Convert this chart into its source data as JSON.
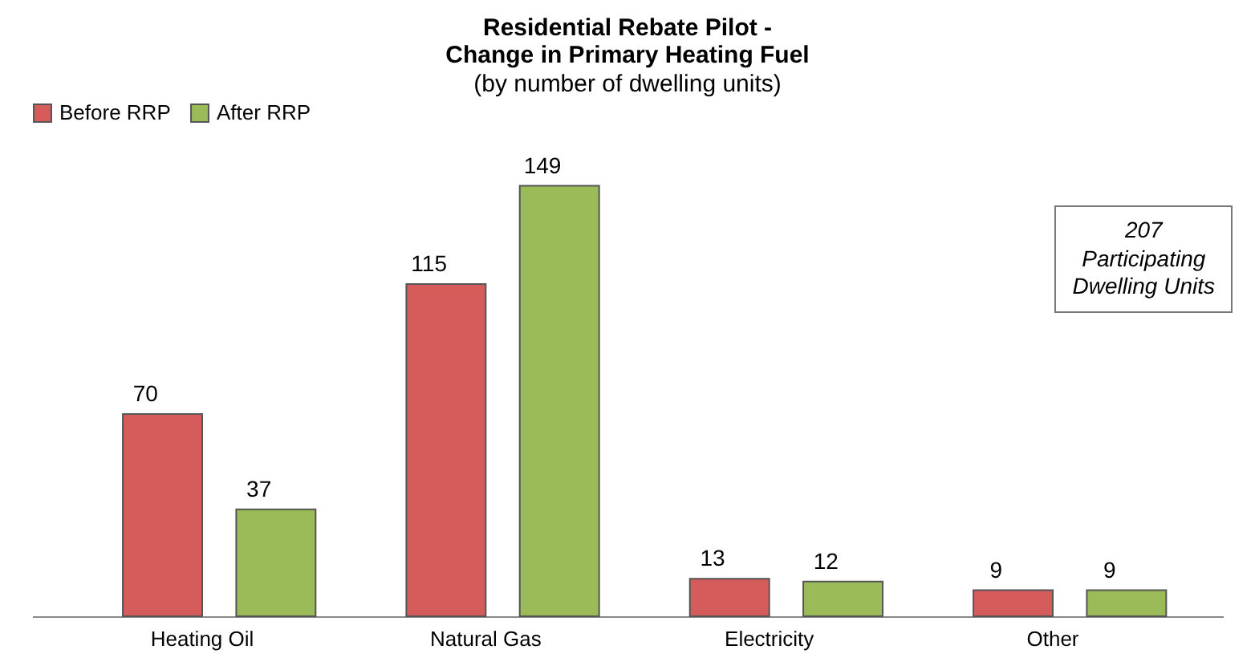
{
  "chart_data": {
    "type": "bar",
    "title": "Residential Rebate Pilot -\nChange in Primary Heating Fuel",
    "subtitle": "(by number of dwelling units)",
    "categories": [
      "Heating Oil",
      "Natural Gas",
      "Electricity",
      "Other"
    ],
    "series": [
      {
        "name": "Before RRP",
        "color": "#d65c5c",
        "values": [
          70,
          115,
          13,
          9
        ]
      },
      {
        "name": "After RRP",
        "color": "#9bbb59",
        "values": [
          37,
          149,
          12,
          9
        ]
      }
    ],
    "data_labels": true,
    "legend": "top",
    "grid": false,
    "annotations": [
      "207\nParticipating\nDwelling Units"
    ]
  }
}
